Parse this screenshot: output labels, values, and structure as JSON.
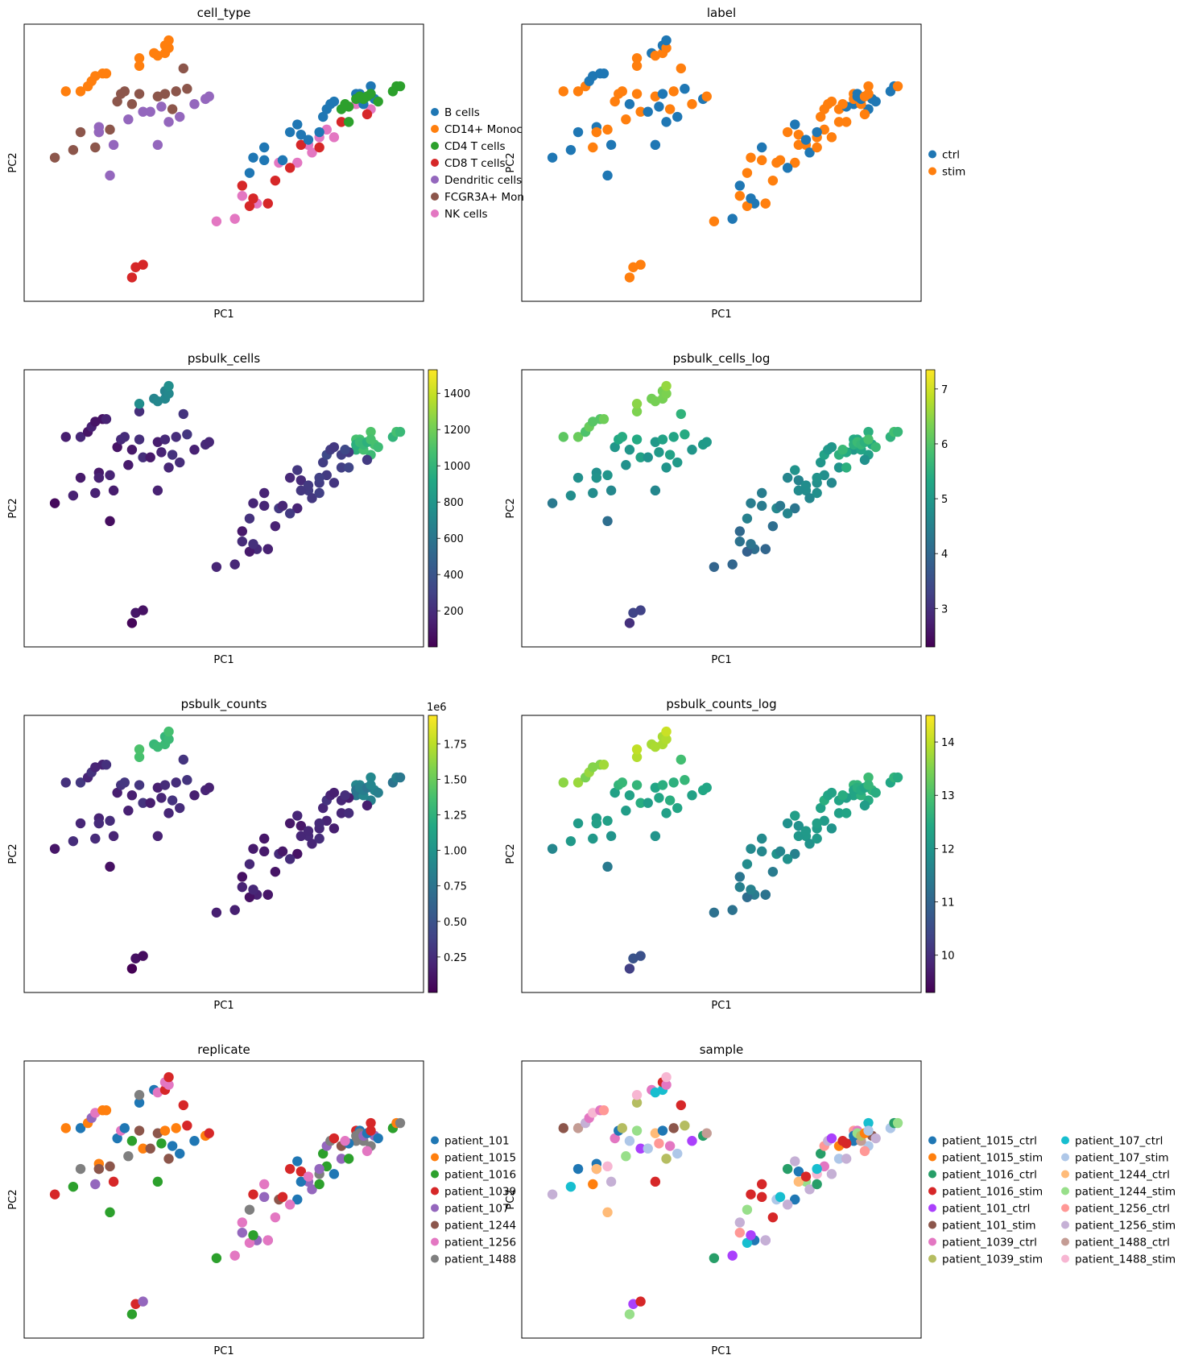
{
  "figure": {
    "background": "#ffffff"
  },
  "chart_data": [
    {
      "id": "cell_type",
      "type": "scatter",
      "title": "cell_type",
      "xlabel": "PC1",
      "ylabel": "PC2",
      "color_by": "categorical",
      "grid": false,
      "legend": {
        "placement": "right",
        "columns": 1
      },
      "legend_entries": [
        {
          "label": "B cells",
          "color": "#1f77b4"
        },
        {
          "label": "CD14+ Monoc",
          "color": "#ff7f0e"
        },
        {
          "label": "CD4 T cells",
          "color": "#2ca02c"
        },
        {
          "label": "CD8 T cells",
          "color": "#d62728"
        },
        {
          "label": "Dendritic cells",
          "color": "#9467bd"
        },
        {
          "label": "FCGR3A+ Mon",
          "color": "#8c564b"
        },
        {
          "label": "NK cells",
          "color": "#e377c2"
        }
      ],
      "points": [
        {
          "x": 0.04,
          "y": 0.52,
          "c": 5
        },
        {
          "x": 0.09,
          "y": 0.55,
          "c": 5
        },
        {
          "x": 0.11,
          "y": 0.62,
          "c": 5
        },
        {
          "x": 0.15,
          "y": 0.56,
          "c": 5
        },
        {
          "x": 0.16,
          "y": 0.62,
          "c": 5
        },
        {
          "x": 0.19,
          "y": 0.63,
          "c": 5
        },
        {
          "x": 0.21,
          "y": 0.74,
          "c": 5
        },
        {
          "x": 0.22,
          "y": 0.77,
          "c": 5
        },
        {
          "x": 0.23,
          "y": 0.78,
          "c": 5
        },
        {
          "x": 0.25,
          "y": 0.73,
          "c": 5
        },
        {
          "x": 0.27,
          "y": 0.77,
          "c": 5
        },
        {
          "x": 0.32,
          "y": 0.76,
          "c": 5
        },
        {
          "x": 0.34,
          "y": 0.77,
          "c": 5
        },
        {
          "x": 0.36,
          "y": 0.71,
          "c": 5
        },
        {
          "x": 0.37,
          "y": 0.78,
          "c": 5
        },
        {
          "x": 0.39,
          "y": 0.87,
          "c": 5
        },
        {
          "x": 0.4,
          "y": 0.79,
          "c": 5
        },
        {
          "x": 0.07,
          "y": 0.78,
          "c": 1
        },
        {
          "x": 0.11,
          "y": 0.78,
          "c": 1
        },
        {
          "x": 0.13,
          "y": 0.8,
          "c": 1
        },
        {
          "x": 0.14,
          "y": 0.82,
          "c": 1
        },
        {
          "x": 0.15,
          "y": 0.84,
          "c": 1
        },
        {
          "x": 0.17,
          "y": 0.85,
          "c": 1
        },
        {
          "x": 0.18,
          "y": 0.85,
          "c": 1
        },
        {
          "x": 0.27,
          "y": 0.88,
          "c": 1
        },
        {
          "x": 0.27,
          "y": 0.91,
          "c": 1
        },
        {
          "x": 0.31,
          "y": 0.93,
          "c": 1
        },
        {
          "x": 0.32,
          "y": 0.92,
          "c": 1
        },
        {
          "x": 0.34,
          "y": 0.93,
          "c": 1
        },
        {
          "x": 0.34,
          "y": 0.96,
          "c": 1
        },
        {
          "x": 0.35,
          "y": 0.95,
          "c": 1
        },
        {
          "x": 0.35,
          "y": 0.98,
          "c": 1
        },
        {
          "x": 0.16,
          "y": 0.64,
          "c": 4
        },
        {
          "x": 0.2,
          "y": 0.57,
          "c": 4
        },
        {
          "x": 0.16,
          "y": 0.62,
          "c": 4
        },
        {
          "x": 0.24,
          "y": 0.67,
          "c": 4
        },
        {
          "x": 0.28,
          "y": 0.7,
          "c": 4
        },
        {
          "x": 0.3,
          "y": 0.7,
          "c": 4
        },
        {
          "x": 0.32,
          "y": 0.57,
          "c": 4
        },
        {
          "x": 0.33,
          "y": 0.72,
          "c": 4
        },
        {
          "x": 0.35,
          "y": 0.66,
          "c": 4
        },
        {
          "x": 0.38,
          "y": 0.68,
          "c": 4
        },
        {
          "x": 0.42,
          "y": 0.73,
          "c": 4
        },
        {
          "x": 0.45,
          "y": 0.75,
          "c": 4
        },
        {
          "x": 0.46,
          "y": 0.76,
          "c": 4
        },
        {
          "x": 0.19,
          "y": 0.45,
          "c": 4
        },
        {
          "x": 0.25,
          "y": 0.05,
          "c": 3
        },
        {
          "x": 0.26,
          "y": 0.09,
          "c": 3
        },
        {
          "x": 0.28,
          "y": 0.1,
          "c": 3
        },
        {
          "x": 0.48,
          "y": 0.27,
          "c": 6
        },
        {
          "x": 0.55,
          "y": 0.37,
          "c": 6
        },
        {
          "x": 0.59,
          "y": 0.34,
          "c": 6
        },
        {
          "x": 0.62,
          "y": 0.34,
          "c": 6
        },
        {
          "x": 0.53,
          "y": 0.28,
          "c": 6
        },
        {
          "x": 0.65,
          "y": 0.5,
          "c": 6
        },
        {
          "x": 0.7,
          "y": 0.5,
          "c": 6
        },
        {
          "x": 0.73,
          "y": 0.57,
          "c": 6
        },
        {
          "x": 0.74,
          "y": 0.54,
          "c": 6
        },
        {
          "x": 0.76,
          "y": 0.6,
          "c": 6
        },
        {
          "x": 0.78,
          "y": 0.63,
          "c": 6
        },
        {
          "x": 0.8,
          "y": 0.6,
          "c": 6
        },
        {
          "x": 0.86,
          "y": 0.73,
          "c": 6
        },
        {
          "x": 0.9,
          "y": 0.71,
          "c": 6
        },
        {
          "x": 0.55,
          "y": 0.41,
          "c": 3
        },
        {
          "x": 0.57,
          "y": 0.33,
          "c": 3
        },
        {
          "x": 0.58,
          "y": 0.36,
          "c": 3
        },
        {
          "x": 0.62,
          "y": 0.34,
          "c": 3
        },
        {
          "x": 0.64,
          "y": 0.43,
          "c": 3
        },
        {
          "x": 0.68,
          "y": 0.48,
          "c": 3
        },
        {
          "x": 0.71,
          "y": 0.57,
          "c": 3
        },
        {
          "x": 0.76,
          "y": 0.56,
          "c": 3
        },
        {
          "x": 0.82,
          "y": 0.66,
          "c": 3
        },
        {
          "x": 0.89,
          "y": 0.69,
          "c": 3
        },
        {
          "x": 0.57,
          "y": 0.46,
          "c": 0
        },
        {
          "x": 0.58,
          "y": 0.52,
          "c": 0
        },
        {
          "x": 0.61,
          "y": 0.51,
          "c": 0
        },
        {
          "x": 0.61,
          "y": 0.56,
          "c": 0
        },
        {
          "x": 0.66,
          "y": 0.51,
          "c": 0
        },
        {
          "x": 0.68,
          "y": 0.62,
          "c": 0
        },
        {
          "x": 0.7,
          "y": 0.65,
          "c": 0
        },
        {
          "x": 0.71,
          "y": 0.61,
          "c": 0
        },
        {
          "x": 0.73,
          "y": 0.59,
          "c": 0
        },
        {
          "x": 0.76,
          "y": 0.62,
          "c": 0
        },
        {
          "x": 0.77,
          "y": 0.68,
          "c": 0
        },
        {
          "x": 0.78,
          "y": 0.71,
          "c": 0
        },
        {
          "x": 0.79,
          "y": 0.73,
          "c": 0
        },
        {
          "x": 0.8,
          "y": 0.74,
          "c": 0
        },
        {
          "x": 0.86,
          "y": 0.77,
          "c": 0
        },
        {
          "x": 0.87,
          "y": 0.77,
          "c": 0
        },
        {
          "x": 0.88,
          "y": 0.73,
          "c": 0
        },
        {
          "x": 0.9,
          "y": 0.8,
          "c": 0
        },
        {
          "x": 0.91,
          "y": 0.75,
          "c": 0
        },
        {
          "x": 0.82,
          "y": 0.71,
          "c": 2
        },
        {
          "x": 0.84,
          "y": 0.72,
          "c": 2
        },
        {
          "x": 0.86,
          "y": 0.75,
          "c": 2
        },
        {
          "x": 0.87,
          "y": 0.76,
          "c": 2
        },
        {
          "x": 0.88,
          "y": 0.75,
          "c": 2
        },
        {
          "x": 0.89,
          "y": 0.76,
          "c": 2
        },
        {
          "x": 0.9,
          "y": 0.77,
          "c": 2
        },
        {
          "x": 0.92,
          "y": 0.74,
          "c": 2
        },
        {
          "x": 0.96,
          "y": 0.78,
          "c": 2
        },
        {
          "x": 0.97,
          "y": 0.8,
          "c": 2
        },
        {
          "x": 0.98,
          "y": 0.8,
          "c": 2
        },
        {
          "x": 0.84,
          "y": 0.66,
          "c": 2
        },
        {
          "x": 0.83,
          "y": 0.73,
          "c": 2
        }
      ]
    },
    {
      "id": "label",
      "type": "scatter",
      "title": "label",
      "xlabel": "PC1",
      "ylabel": "PC2",
      "color_by": "categorical",
      "grid": false,
      "legend": {
        "placement": "right",
        "columns": 1
      },
      "legend_entries": [
        {
          "label": "ctrl",
          "color": "#1f77b4"
        },
        {
          "label": "stim",
          "color": "#ff7f0e"
        }
      ],
      "points_ref": "cell_type",
      "categories_by_index": "label"
    },
    {
      "id": "psbulk_cells",
      "type": "scatter",
      "title": "psbulk_cells",
      "xlabel": "PC1",
      "ylabel": "PC2",
      "color_by": "continuous",
      "colormap": "viridis",
      "grid": false,
      "colorbar": {
        "ticks": [
          "200",
          "400",
          "600",
          "800",
          "1000",
          "1200",
          "1400"
        ],
        "tick_values": [
          200,
          400,
          600,
          800,
          1000,
          1200,
          1400
        ],
        "range": [
          1,
          1530
        ],
        "offset_text": ""
      },
      "points_ref": "cell_type",
      "value_field": "cells"
    },
    {
      "id": "psbulk_cells_log",
      "type": "scatter",
      "title": "psbulk_cells_log",
      "xlabel": "PC1",
      "ylabel": "PC2",
      "color_by": "continuous",
      "colormap": "viridis",
      "grid": false,
      "colorbar": {
        "ticks": [
          "3",
          "4",
          "5",
          "6",
          "7"
        ],
        "tick_values": [
          3,
          4,
          5,
          6,
          7
        ],
        "range": [
          2.3,
          7.35
        ],
        "offset_text": ""
      },
      "points_ref": "cell_type",
      "value_field": "cells_log"
    },
    {
      "id": "psbulk_counts",
      "type": "scatter",
      "title": "psbulk_counts",
      "xlabel": "PC1",
      "ylabel": "PC2",
      "color_by": "continuous",
      "colormap": "viridis",
      "grid": false,
      "colorbar": {
        "ticks": [
          "0.25",
          "0.50",
          "0.75",
          "1.00",
          "1.25",
          "1.50",
          "1.75"
        ],
        "tick_values": [
          0.25,
          0.5,
          0.75,
          1.0,
          1.25,
          1.5,
          1.75
        ],
        "range": [
          0.0,
          1.95
        ],
        "offset_text": "1e6"
      },
      "points_ref": "cell_type",
      "value_field": "counts"
    },
    {
      "id": "psbulk_counts_log",
      "type": "scatter",
      "title": "psbulk_counts_log",
      "xlabel": "PC1",
      "ylabel": "PC2",
      "color_by": "continuous",
      "colormap": "viridis",
      "grid": false,
      "colorbar": {
        "ticks": [
          "10",
          "11",
          "12",
          "13",
          "14"
        ],
        "tick_values": [
          10,
          11,
          12,
          13,
          14
        ],
        "range": [
          9.3,
          14.5
        ],
        "offset_text": ""
      },
      "points_ref": "cell_type",
      "value_field": "counts_log"
    },
    {
      "id": "replicate",
      "type": "scatter",
      "title": "replicate",
      "xlabel": "PC1",
      "ylabel": "PC2",
      "color_by": "categorical",
      "grid": false,
      "legend": {
        "placement": "right",
        "columns": 1
      },
      "legend_entries": [
        {
          "label": "patient_101",
          "color": "#1f77b4"
        },
        {
          "label": "patient_1015",
          "color": "#ff7f0e"
        },
        {
          "label": "patient_1016",
          "color": "#2ca02c"
        },
        {
          "label": "patient_1039",
          "color": "#d62728"
        },
        {
          "label": "patient_107",
          "color": "#9467bd"
        },
        {
          "label": "patient_1244",
          "color": "#8c564b"
        },
        {
          "label": "patient_1256",
          "color": "#e377c2"
        },
        {
          "label": "patient_1488",
          "color": "#7f7f7f"
        }
      ],
      "points_ref": "cell_type",
      "categories_by_index": "replicate"
    },
    {
      "id": "sample",
      "type": "scatter",
      "title": "sample",
      "xlabel": "PC1",
      "ylabel": "PC2",
      "color_by": "categorical",
      "grid": false,
      "legend": {
        "placement": "right",
        "columns": 2
      },
      "legend_entries": [
        {
          "label": "patient_1015_ctrl",
          "color": "#1f77b4"
        },
        {
          "label": "patient_1015_stim",
          "color": "#ff7f0e"
        },
        {
          "label": "patient_1016_ctrl",
          "color": "#279e68"
        },
        {
          "label": "patient_1016_stim",
          "color": "#d62728"
        },
        {
          "label": "patient_101_ctrl",
          "color": "#aa40fc"
        },
        {
          "label": "patient_101_stim",
          "color": "#8c564b"
        },
        {
          "label": "patient_1039_ctrl",
          "color": "#e377c2"
        },
        {
          "label": "patient_1039_stim",
          "color": "#b5bd61"
        },
        {
          "label": "patient_107_ctrl",
          "color": "#17becf"
        },
        {
          "label": "patient_107_stim",
          "color": "#aec7e8"
        },
        {
          "label": "patient_1244_ctrl",
          "color": "#ffbb78"
        },
        {
          "label": "patient_1244_stim",
          "color": "#98df8a"
        },
        {
          "label": "patient_1256_ctrl",
          "color": "#ff9896"
        },
        {
          "label": "patient_1256_stim",
          "color": "#c5b0d5"
        },
        {
          "label": "patient_1488_ctrl",
          "color": "#c49c94"
        },
        {
          "label": "patient_1488_stim",
          "color": "#f7b6d2"
        }
      ],
      "points_ref": "cell_type",
      "categories_by_index": "sample"
    }
  ]
}
